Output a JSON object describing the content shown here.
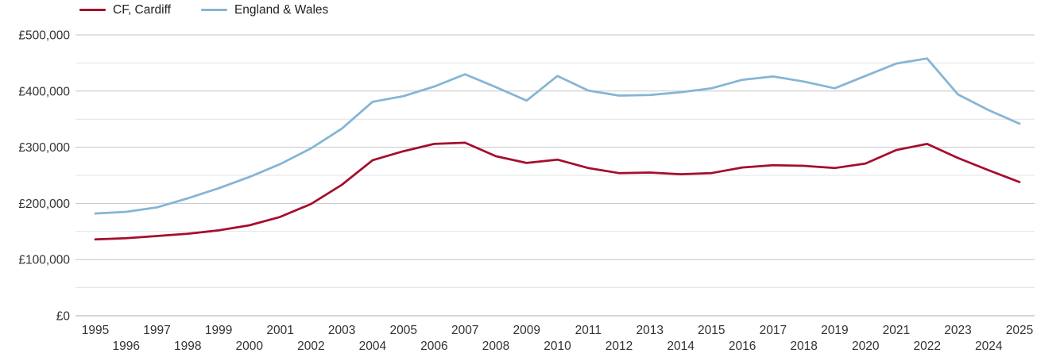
{
  "chart_data": {
    "type": "line",
    "title": "",
    "xlabel": "",
    "ylabel": "",
    "x": [
      1995,
      1996,
      1997,
      1998,
      1999,
      2000,
      2001,
      2002,
      2003,
      2004,
      2005,
      2006,
      2007,
      2008,
      2009,
      2010,
      2011,
      2012,
      2013,
      2014,
      2015,
      2016,
      2017,
      2018,
      2019,
      2020,
      2021,
      2022,
      2023,
      2024,
      2025
    ],
    "series": [
      {
        "name": "CF, Cardiff",
        "color": "#a50e2d",
        "values": [
          136000,
          138000,
          142000,
          146000,
          152000,
          161000,
          176000,
          199000,
          233000,
          277000,
          293000,
          306000,
          308000,
          284000,
          272000,
          278000,
          263000,
          254000,
          255000,
          252000,
          254000,
          264000,
          268000,
          267000,
          263000,
          271000,
          295000,
          306000,
          281000,
          259000,
          238000
        ]
      },
      {
        "name": "England & Wales",
        "color": "#85b5d5",
        "values": [
          182000,
          185000,
          193000,
          209000,
          227000,
          247000,
          270000,
          298000,
          333000,
          381000,
          391000,
          408000,
          430000,
          407000,
          383000,
          427000,
          401000,
          392000,
          393000,
          398000,
          405000,
          420000,
          426000,
          417000,
          405000,
          427000,
          449000,
          458000,
          394000,
          366000,
          342000
        ]
      }
    ],
    "ylim": [
      0,
      500000
    ],
    "y_major_step": 100000,
    "y_minor_step": 50000,
    "y_tick_prefix": "£",
    "y_tick_labels": [
      "£0",
      "£100,000",
      "£200,000",
      "£300,000",
      "£400,000",
      "£500,000"
    ],
    "x_tick_labels_row1": [
      "1995",
      "1997",
      "1999",
      "2001",
      "2003",
      "2005",
      "2007",
      "2009",
      "2011",
      "2013",
      "2015",
      "2017",
      "2019",
      "2021",
      "2023",
      "2025"
    ],
    "x_tick_labels_row2": [
      "1996",
      "1998",
      "2000",
      "2002",
      "2004",
      "2006",
      "2008",
      "2010",
      "2012",
      "2014",
      "2016",
      "2018",
      "2020",
      "2022",
      "2024"
    ],
    "grid": true,
    "legend_position": "top-left",
    "axis_text_color": "#333333",
    "grid_major_color": "#c6c6c6",
    "grid_minor_color": "#e3e3e3",
    "grid_zero_color": "#ababab"
  }
}
